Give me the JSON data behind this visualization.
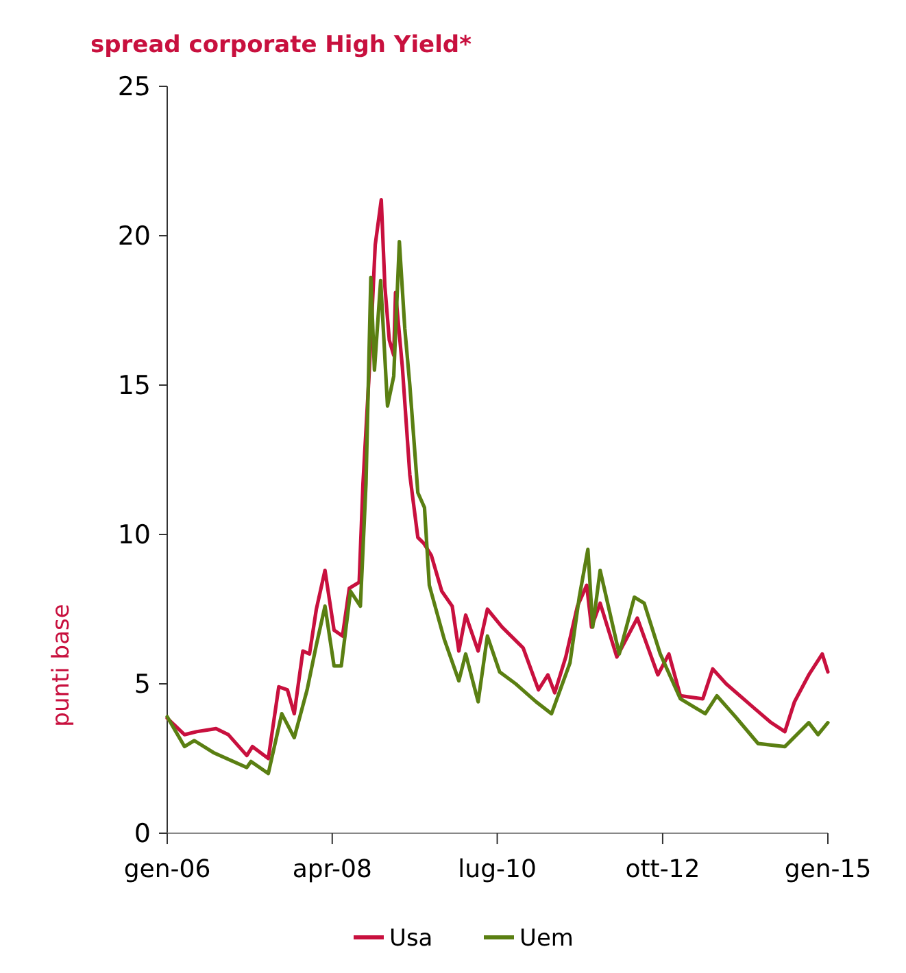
{
  "chart_data": {
    "type": "line",
    "title": "spread corporate High Yield*",
    "ylabel": "punti base",
    "xlim": [
      "2006-01",
      "2015-01"
    ],
    "xticks": [
      {
        "value": "2006-01",
        "label": "gen-06"
      },
      {
        "value": "2008-04",
        "label": "apr-08"
      },
      {
        "value": "2010-07",
        "label": "lug-10"
      },
      {
        "value": "2012-10",
        "label": "ott-12"
      },
      {
        "value": "2015-01",
        "label": "gen-15"
      }
    ],
    "ylim": [
      0,
      25
    ],
    "yticks": [
      0,
      5,
      10,
      15,
      20,
      25
    ],
    "legend": "bottom",
    "grid": false,
    "marker": "none",
    "line_style": "solid",
    "series": [
      {
        "name": "Usa",
        "color": "#c8103e",
        "x": [
          "2006-01-01",
          "2006-03-28",
          "2006-05-28",
          "2006-09-01",
          "2006-11-01",
          "2007-02-01",
          "2007-03-01",
          "2007-05-19",
          "2007-06-01",
          "2007-07-10",
          "2007-08-22",
          "2007-09-25",
          "2007-11-07",
          "2007-12-10",
          "2008-01-13",
          "2008-02-25",
          "2008-04-10",
          "2008-05-22",
          "2008-06-25",
          "2008-08-13",
          "2008-09-01",
          "2008-10-01",
          "2008-11-01",
          "2008-12-01",
          "2008-12-19",
          "2009-01-10",
          "2009-02-01",
          "2009-02-10",
          "2009-03-16",
          "2009-04-22",
          "2009-06-01",
          "2009-07-01",
          "2009-08-07",
          "2009-09-28",
          "2009-11-19",
          "2009-12-22",
          "2010-01-25",
          "2010-03-28",
          "2010-05-13",
          "2010-07-25",
          "2010-11-07",
          "2011-01-22",
          "2011-03-10",
          "2011-04-13",
          "2011-06-07",
          "2011-08-04",
          "2011-09-19",
          "2011-10-13",
          "2011-11-25",
          "2012-02-16",
          "2012-05-28",
          "2012-09-07",
          "2012-11-01",
          "2012-12-28",
          "2013-04-19",
          "2013-06-07",
          "2013-08-13",
          "2013-12-28",
          "2014-03-25",
          "2014-06-01",
          "2014-07-19",
          "2014-09-28",
          "2014-12-04",
          "2015-01-01"
        ],
        "values": [
          3.85,
          3.3,
          3.4,
          3.5,
          3.3,
          2.6,
          2.9,
          2.5,
          3.1,
          4.9,
          4.8,
          4.0,
          6.1,
          6.0,
          7.5,
          8.8,
          6.8,
          6.6,
          8.2,
          8.4,
          11.7,
          15.3,
          19.7,
          21.2,
          18.3,
          16.5,
          16.0,
          18.1,
          15.6,
          12.0,
          9.9,
          9.7,
          9.3,
          8.1,
          7.6,
          6.1,
          7.3,
          6.1,
          7.5,
          6.9,
          6.2,
          4.8,
          5.3,
          4.7,
          5.9,
          7.6,
          8.3,
          6.9,
          7.7,
          5.9,
          7.2,
          5.3,
          6.0,
          4.6,
          4.5,
          5.5,
          5.0,
          4.2,
          3.7,
          3.4,
          4.4,
          5.3,
          6.0,
          5.4
        ]
      },
      {
        "name": "Uem",
        "color": "#5a7f12",
        "x": [
          "2006-01-01",
          "2006-03-28",
          "2006-05-16",
          "2006-08-19",
          "2007-02-01",
          "2007-02-22",
          "2007-05-19",
          "2007-07-25",
          "2007-09-25",
          "2007-11-28",
          "2008-01-13",
          "2008-02-25",
          "2008-04-10",
          "2008-05-16",
          "2008-07-01",
          "2008-08-19",
          "2008-09-16",
          "2008-10-10",
          "2008-10-28",
          "2008-11-28",
          "2009-01-01",
          "2009-02-01",
          "2009-03-01",
          "2009-03-28",
          "2009-04-22",
          "2009-06-01",
          "2009-07-04",
          "2009-07-28",
          "2009-10-10",
          "2009-12-22",
          "2010-01-25",
          "2010-03-28",
          "2010-05-13",
          "2010-07-13",
          "2010-10-01",
          "2011-01-10",
          "2011-03-28",
          "2011-06-28",
          "2011-08-13",
          "2011-09-25",
          "2011-10-19",
          "2011-11-25",
          "2012-02-28",
          "2012-05-13",
          "2012-07-01",
          "2012-09-19",
          "2012-12-28",
          "2013-05-01",
          "2013-06-28",
          "2013-09-28",
          "2014-01-19",
          "2014-06-01",
          "2014-09-28",
          "2014-11-13",
          "2015-01-01"
        ],
        "values": [
          3.9,
          2.9,
          3.1,
          2.7,
          2.2,
          2.4,
          2.0,
          4.0,
          3.2,
          4.8,
          6.3,
          7.6,
          5.6,
          5.6,
          8.1,
          7.6,
          11.7,
          18.6,
          15.5,
          18.5,
          14.3,
          15.3,
          19.8,
          16.9,
          15.0,
          11.4,
          10.9,
          8.3,
          6.5,
          5.1,
          6.0,
          4.4,
          6.6,
          5.4,
          5.0,
          4.4,
          4.0,
          5.7,
          7.9,
          9.5,
          6.9,
          8.8,
          6.0,
          7.9,
          7.7,
          6.0,
          4.5,
          4.0,
          4.6,
          3.9,
          3.0,
          2.9,
          3.7,
          3.3,
          3.7
        ]
      }
    ]
  }
}
